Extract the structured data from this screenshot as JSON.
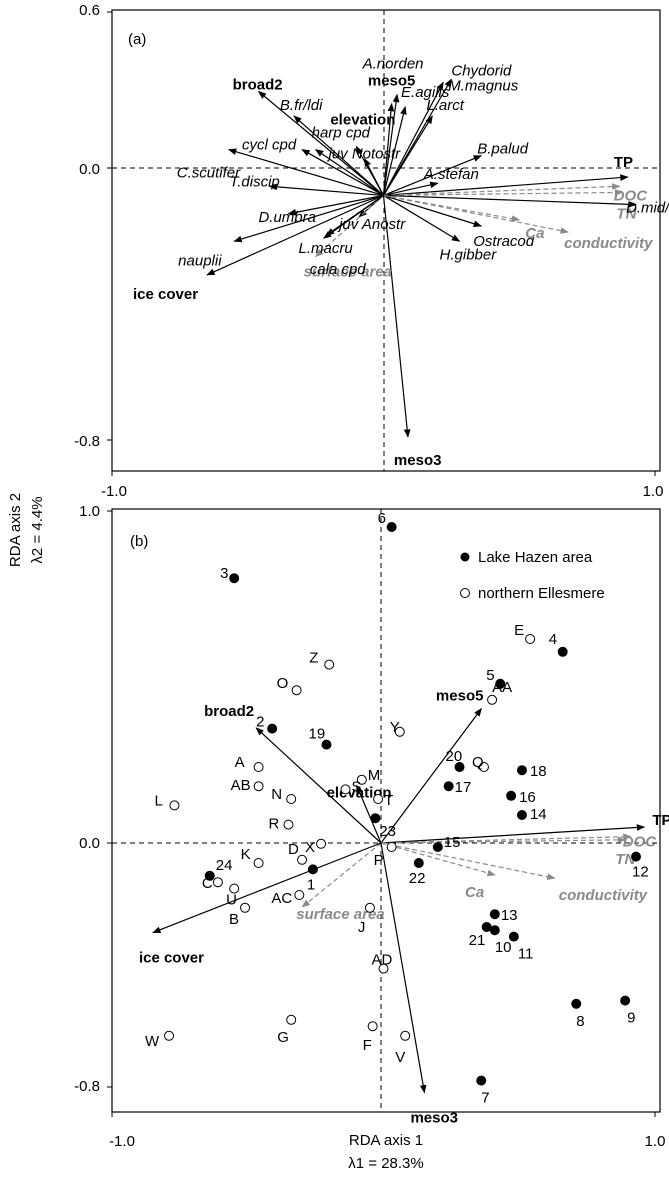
{
  "chart_data": [
    {
      "type": "scatter",
      "panel": "(a)",
      "xlim": [
        -1.0,
        1.0
      ],
      "ylim": [
        -0.8,
        0.6
      ],
      "x_ticks": [
        "-1.0",
        "1.0"
      ],
      "y_ticks": [
        "0.6",
        "0.0",
        "-0.8"
      ],
      "species": [
        {
          "name": "A.norden",
          "x": 0.05,
          "y": 0.33
        },
        {
          "name": "E.agilis",
          "x": 0.08,
          "y": 0.29
        },
        {
          "name": "Chydorid",
          "x": 0.25,
          "y": 0.38
        },
        {
          "name": "M.magnus",
          "x": 0.22,
          "y": 0.37
        },
        {
          "name": "meso5",
          "x": 0.03,
          "y": 0.3
        },
        {
          "name": "broad2",
          "x": -0.46,
          "y": 0.34
        },
        {
          "name": "B.fr/ldi",
          "x": -0.33,
          "y": 0.26
        },
        {
          "name": "harp cpd",
          "x": -0.25,
          "y": 0.15
        },
        {
          "name": "cycl cpd",
          "x": -0.3,
          "y": 0.15
        },
        {
          "name": "elevation",
          "x": -0.1,
          "y": 0.16
        },
        {
          "name": "L.arct",
          "x": 0.18,
          "y": 0.26
        },
        {
          "name": "juv Notostr",
          "x": -0.07,
          "y": 0.12
        },
        {
          "name": "B.palud",
          "x": 0.36,
          "y": 0.13
        },
        {
          "name": "C.scutifer",
          "x": -0.57,
          "y": 0.15
        },
        {
          "name": "TP",
          "x": 0.9,
          "y": 0.06
        },
        {
          "name": "A.stefan",
          "x": 0.2,
          "y": 0.04
        },
        {
          "name": "DOC",
          "x": 0.87,
          "y": 0.03
        },
        {
          "name": "TN",
          "x": 0.88,
          "y": 0.01
        },
        {
          "name": "T.discip",
          "x": -0.42,
          "y": 0.03
        },
        {
          "name": "D.mid/ten",
          "x": 0.93,
          "y": -0.03
        },
        {
          "name": "D.umbra",
          "x": -0.35,
          "y": -0.06
        },
        {
          "name": "juv Anostr",
          "x": -0.09,
          "y": -0.07
        },
        {
          "name": "nauplii",
          "x": -0.55,
          "y": -0.15
        },
        {
          "name": "L.macru",
          "x": -0.21,
          "y": -0.13
        },
        {
          "name": "Ostracod",
          "x": 0.36,
          "y": -0.1
        },
        {
          "name": "surface area",
          "x": -0.25,
          "y": -0.2
        },
        {
          "name": "cala cpd",
          "x": -0.22,
          "y": -0.14
        },
        {
          "name": "H.gibber",
          "x": 0.28,
          "y": -0.15
        },
        {
          "name": "Ca",
          "x": 0.5,
          "y": -0.08
        },
        {
          "name": "conductivity",
          "x": 0.68,
          "y": -0.12
        },
        {
          "name": "ice cover",
          "x": -0.65,
          "y": -0.26
        },
        {
          "name": "meso3",
          "x": 0.09,
          "y": -0.79
        }
      ]
    },
    {
      "type": "scatter",
      "panel": "(b)",
      "xlim": [
        -1.0,
        1.0
      ],
      "ylim": [
        -0.8,
        1.0
      ],
      "x_ticks": [
        "-1.0",
        "1.0"
      ],
      "y_ticks": [
        "1.0",
        "0.0",
        "-0.8"
      ],
      "legend": [
        "Lake Hazen area",
        "northern Ellesmere"
      ],
      "series": [
        {
          "name": "Lake Hazen area",
          "points": [
            {
              "label": "6",
              "x": 0.03,
              "y": 0.95
            },
            {
              "label": "3",
              "x": -0.55,
              "y": 0.79
            },
            {
              "label": "4",
              "x": 0.66,
              "y": 0.56
            },
            {
              "label": "5",
              "x": 0.43,
              "y": 0.46
            },
            {
              "label": "2",
              "x": -0.41,
              "y": 0.32
            },
            {
              "label": "19",
              "x": -0.21,
              "y": 0.27
            },
            {
              "label": "20",
              "x": 0.28,
              "y": 0.2
            },
            {
              "label": "18",
              "x": 0.51,
              "y": 0.19
            },
            {
              "label": "17",
              "x": 0.24,
              "y": 0.14
            },
            {
              "label": "16",
              "x": 0.47,
              "y": 0.11
            },
            {
              "label": "14",
              "x": 0.51,
              "y": 0.05
            },
            {
              "label": "23",
              "x": -0.03,
              "y": 0.04
            },
            {
              "label": "1",
              "x": -0.26,
              "y": -0.12
            },
            {
              "label": "24",
              "x": -0.64,
              "y": -0.14
            },
            {
              "label": "22",
              "x": 0.13,
              "y": -0.1
            },
            {
              "label": "15",
              "x": 0.2,
              "y": -0.05
            },
            {
              "label": "12",
              "x": 0.93,
              "y": -0.08
            },
            {
              "label": "13",
              "x": 0.41,
              "y": -0.26
            },
            {
              "label": "21",
              "x": 0.38,
              "y": -0.3
            },
            {
              "label": "10",
              "x": 0.41,
              "y": -0.31
            },
            {
              "label": "11",
              "x": 0.48,
              "y": -0.33
            },
            {
              "label": "8",
              "x": 0.71,
              "y": -0.54
            },
            {
              "label": "9",
              "x": 0.89,
              "y": -0.53
            },
            {
              "label": "7",
              "x": 0.36,
              "y": -0.78
            }
          ]
        },
        {
          "name": "northern Ellesmere",
          "points": [
            {
              "label": "E",
              "x": 0.54,
              "y": 0.6
            },
            {
              "label": "Z",
              "x": -0.2,
              "y": 0.52
            },
            {
              "label": "O",
              "x": -0.32,
              "y": 0.44
            },
            {
              "label": "AA",
              "x": 0.4,
              "y": 0.41
            },
            {
              "label": "Y",
              "x": 0.06,
              "y": 0.31
            },
            {
              "label": "Q",
              "x": 0.37,
              "y": 0.2
            },
            {
              "label": "A",
              "x": -0.46,
              "y": 0.2
            },
            {
              "label": "M",
              "x": -0.08,
              "y": 0.16
            },
            {
              "label": "S",
              "x": -0.14,
              "y": 0.13
            },
            {
              "label": "AB",
              "x": -0.46,
              "y": 0.14
            },
            {
              "label": "T",
              "x": -0.02,
              "y": 0.1
            },
            {
              "label": "N",
              "x": -0.34,
              "y": 0.1
            },
            {
              "label": "L",
              "x": -0.77,
              "y": 0.08
            },
            {
              "label": "R",
              "x": -0.35,
              "y": 0.02
            },
            {
              "label": "X",
              "x": -0.23,
              "y": -0.04
            },
            {
              "label": "D",
              "x": -0.3,
              "y": -0.09
            },
            {
              "label": "K",
              "x": -0.46,
              "y": -0.1
            },
            {
              "label": "C",
              "x": -0.61,
              "y": -0.16
            },
            {
              "label": "U",
              "x": -0.55,
              "y": -0.18
            },
            {
              "label": "AC",
              "x": -0.31,
              "y": -0.2
            },
            {
              "label": "P",
              "x": 0.03,
              "y": -0.05
            },
            {
              "label": "B",
              "x": -0.51,
              "y": -0.24
            },
            {
              "label": "J",
              "x": -0.05,
              "y": -0.24
            },
            {
              "label": "AD",
              "x": 0.0,
              "y": -0.43
            },
            {
              "label": "G",
              "x": -0.34,
              "y": -0.59
            },
            {
              "label": "F",
              "x": -0.04,
              "y": -0.61
            },
            {
              "label": "V",
              "x": 0.08,
              "y": -0.64
            },
            {
              "label": "W",
              "x": -0.79,
              "y": -0.64
            }
          ]
        }
      ],
      "env_vectors": [
        {
          "name": "broad2",
          "x": -0.46,
          "y": 0.36
        },
        {
          "name": "meso5",
          "x": 0.37,
          "y": 0.42
        },
        {
          "name": "elevation",
          "x": -0.09,
          "y": 0.18
        },
        {
          "name": "TP",
          "x": 0.97,
          "y": 0.05
        },
        {
          "name": "DOC",
          "x": 0.92,
          "y": 0.02
        },
        {
          "name": "TN",
          "x": 0.9,
          "y": 0.01
        },
        {
          "name": "Ca",
          "x": 0.42,
          "y": -0.1
        },
        {
          "name": "conductivity",
          "x": 0.64,
          "y": -0.11
        },
        {
          "name": "surface area",
          "x": -0.29,
          "y": -0.2
        },
        {
          "name": "ice cover",
          "x": -0.84,
          "y": -0.28
        },
        {
          "name": "meso3",
          "x": 0.16,
          "y": -0.78
        }
      ]
    }
  ],
  "axes": {
    "x_label": "RDA axis 1",
    "x_eig": "λ1 = 28.3%",
    "y_label": "RDA axis 2",
    "y_eig": "λ2 = 4.4%"
  }
}
